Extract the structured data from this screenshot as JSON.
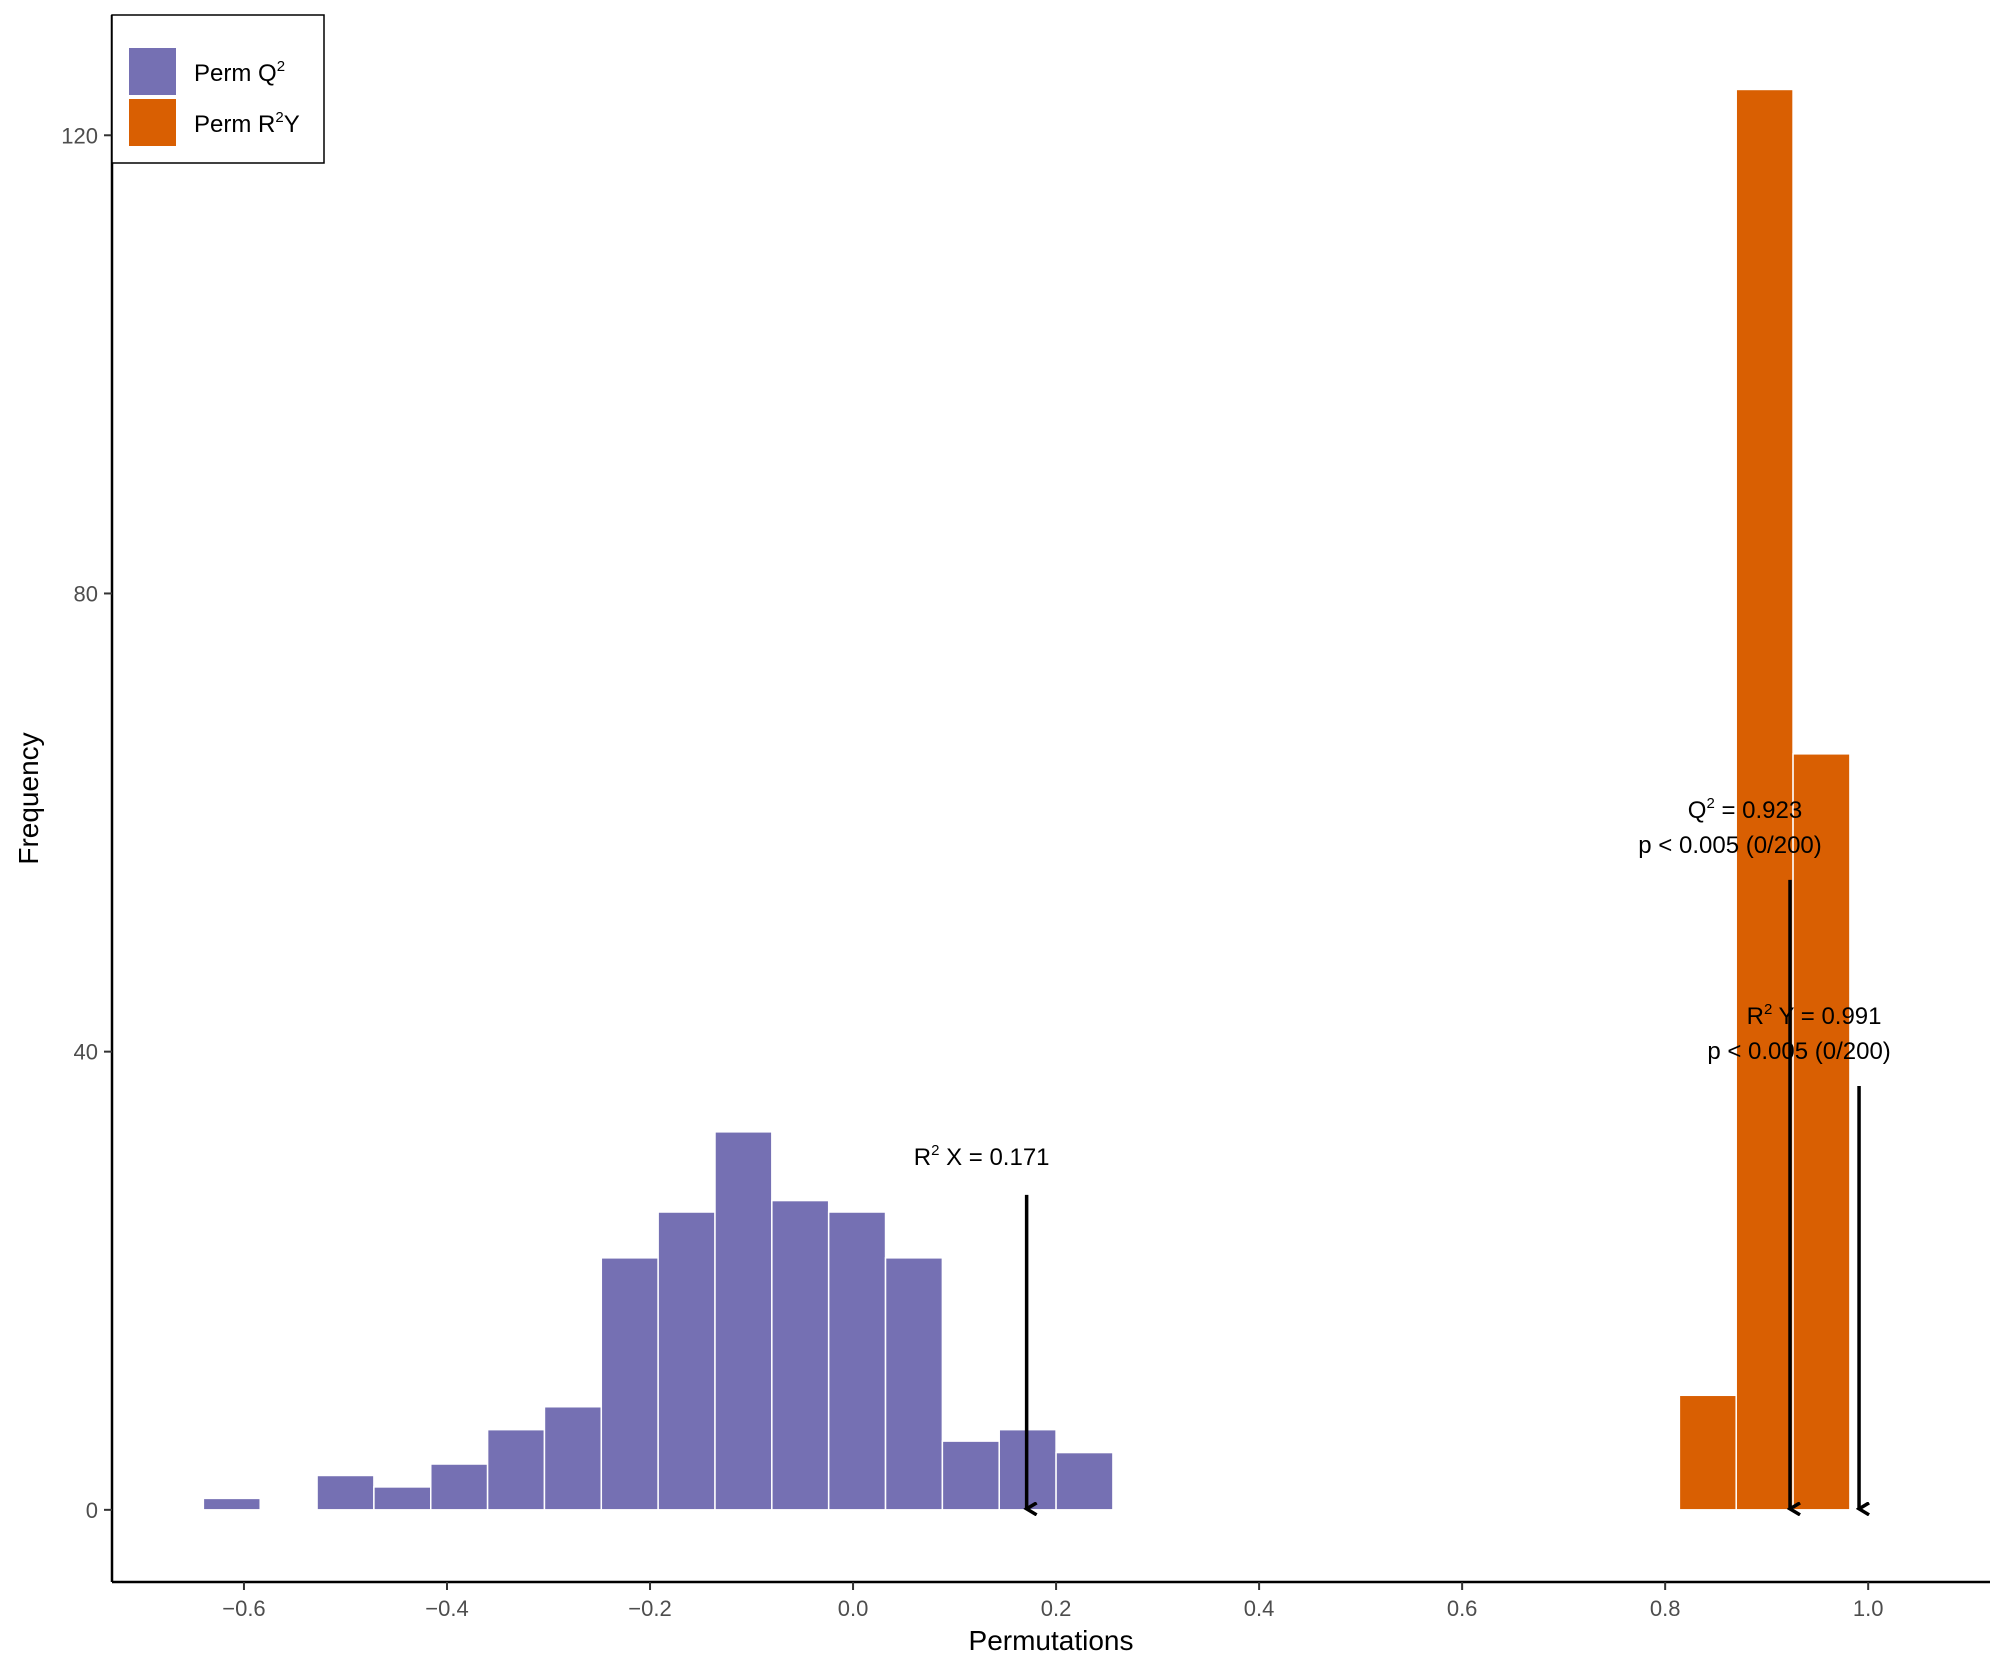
{
  "chart_data": {
    "type": "histogram",
    "title": "",
    "xlabel": "Permutations",
    "ylabel": "Frequency",
    "xlim": [
      -0.73,
      1.12
    ],
    "ylim": [
      -6.3,
      130.5
    ],
    "x_ticks": [
      -0.6,
      -0.4,
      -0.2,
      0.0,
      0.2,
      0.4,
      0.6,
      0.8,
      1.0
    ],
    "x_tick_labels": [
      "−0.6",
      "−0.4",
      "−0.2",
      "0.0",
      "0.2",
      "0.4",
      "0.6",
      "0.8",
      "1.0"
    ],
    "y_ticks": [
      0,
      40,
      80,
      120
    ],
    "y_tick_labels": [
      "0",
      "40",
      "80",
      "120"
    ],
    "grid": false,
    "legend_position": "top-left",
    "series": [
      {
        "name": "Perm Q2",
        "legend_text": "Perm Q",
        "legend_sup": "2",
        "legend_suffix": "",
        "color": "#7570B3",
        "bins": [
          {
            "x0": -0.64,
            "x1": -0.584,
            "count": 1
          },
          {
            "x0": -0.528,
            "x1": -0.472,
            "count": 3
          },
          {
            "x0": -0.472,
            "x1": -0.416,
            "count": 2
          },
          {
            "x0": -0.416,
            "x1": -0.36,
            "count": 4
          },
          {
            "x0": -0.36,
            "x1": -0.304,
            "count": 7
          },
          {
            "x0": -0.304,
            "x1": -0.248,
            "count": 9
          },
          {
            "x0": -0.248,
            "x1": -0.192,
            "count": 22
          },
          {
            "x0": -0.192,
            "x1": -0.136,
            "count": 26
          },
          {
            "x0": -0.136,
            "x1": -0.08,
            "count": 33
          },
          {
            "x0": -0.08,
            "x1": -0.024,
            "count": 27
          },
          {
            "x0": -0.024,
            "x1": 0.032,
            "count": 26
          },
          {
            "x0": 0.032,
            "x1": 0.088,
            "count": 22
          },
          {
            "x0": 0.088,
            "x1": 0.144,
            "count": 6
          },
          {
            "x0": 0.144,
            "x1": 0.2,
            "count": 7
          },
          {
            "x0": 0.2,
            "x1": 0.256,
            "count": 5
          }
        ]
      },
      {
        "name": "Perm R2Y",
        "legend_text": "Perm R",
        "legend_sup": "2",
        "legend_suffix": "Y",
        "color": "#D95F02",
        "bins": [
          {
            "x0": 0.814,
            "x1": 0.87,
            "count": 10
          },
          {
            "x0": 0.87,
            "x1": 0.926,
            "count": 124
          },
          {
            "x0": 0.926,
            "x1": 0.982,
            "count": 66
          }
        ]
      }
    ],
    "annotations": [
      {
        "name": "r2x",
        "pre": "R",
        "sup": "2",
        "post": " X = 0.171",
        "line2": "",
        "value": 0.171,
        "arrow_from_y": 27.5
      },
      {
        "name": "q2",
        "pre": "Q",
        "sup": "2",
        "post": " = 0.923",
        "line2": "p < 0.005 (0/200)",
        "value": 0.923,
        "arrow_from_y": 55
      },
      {
        "name": "r2y",
        "pre": "R",
        "sup": "2",
        "post": " Y = 0.991",
        "line2": "p < 0.005 (0/200)",
        "value": 0.991,
        "arrow_from_y": 37
      }
    ]
  }
}
